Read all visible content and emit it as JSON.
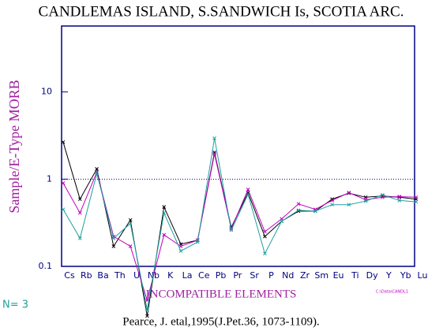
{
  "chart_data": {
    "type": "line",
    "title": "CANDLEMAS ISLAND, S.SANDWICH Is, SCOTIA ARC.",
    "ylabel": "Sample/E-Type MORB",
    "xlabel": "INCOMPATIBLE ELEMENTS",
    "count_label": "N= 3",
    "source": "Pearce, J. etal,1995(J.Pet.36, 1073-1109).",
    "legend_note": "C:\\Data\\CANDL1",
    "log_y": true,
    "reference_line": 1,
    "ylim": [
      0.1,
      57
    ],
    "yticks": [
      0.1,
      1,
      10
    ],
    "categories": [
      "Cs",
      "Rb",
      "Ba",
      "Th",
      "U",
      "Nb",
      "K",
      "La",
      "Ce",
      "Pb",
      "Pr",
      "Sr",
      "P",
      "Nd",
      "Zr",
      "Sm",
      "Eu",
      "Ti",
      "Dy",
      "Y",
      "Yb",
      "Lu"
    ],
    "series": [
      {
        "color": "#000000",
        "values": [
          2.66,
          0.59,
          1.31,
          0.17,
          0.34,
          0.027,
          0.48,
          0.18,
          0.2,
          2.03,
          0.28,
          0.7,
          0.22,
          0.33,
          0.43,
          0.43,
          0.59,
          0.69,
          0.62,
          0.64,
          0.62,
          0.59
        ]
      },
      {
        "color": "#c000c0",
        "values": [
          0.9,
          0.41,
          1.2,
          0.22,
          0.17,
          0.041,
          0.23,
          0.17,
          0.2,
          1.95,
          0.27,
          0.76,
          0.25,
          0.35,
          0.52,
          0.45,
          0.57,
          0.7,
          0.58,
          0.62,
          0.63,
          0.62
        ]
      },
      {
        "color": "#20a0a0",
        "values": [
          0.45,
          0.21,
          1.16,
          0.21,
          0.31,
          0.032,
          0.41,
          0.15,
          0.19,
          2.95,
          0.26,
          0.67,
          0.14,
          0.33,
          0.44,
          0.43,
          0.51,
          0.51,
          0.56,
          0.66,
          0.57,
          0.55
        ]
      }
    ]
  }
}
